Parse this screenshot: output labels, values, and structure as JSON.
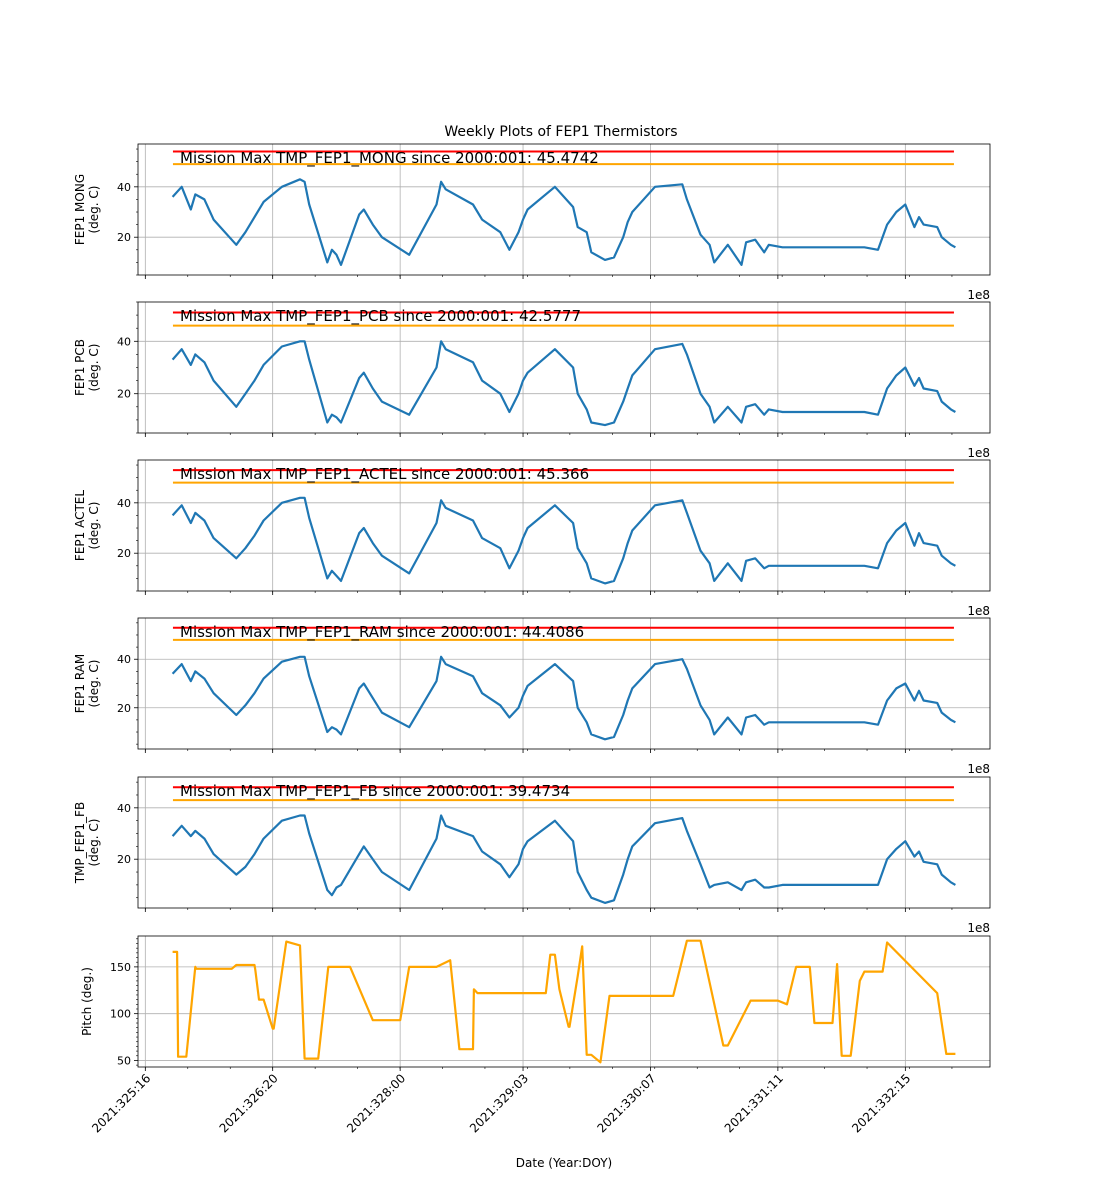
{
  "figure": {
    "title": "Weekly Plots of FEP1 Thermistors",
    "xlabel": "Date (Year:DOY)",
    "offset_label": "1e8"
  },
  "colors": {
    "series": "#1f77b4",
    "pitch": "#ffa500",
    "red_limit": "#ff0000",
    "yellow_limit": "#ffa500",
    "grid": "#b0b0b0",
    "frame": "#000000"
  },
  "chart_data": [
    {
      "type": "line",
      "ylabel": [
        "FEP1 MONG",
        "(deg. C)"
      ],
      "annotation": "Mission Max TMP_FEP1_MONG since 2000:001: 45.4742",
      "ylim": [
        5,
        57
      ],
      "yticks": [
        20,
        40
      ],
      "limits": [
        {
          "name": "red",
          "value": 54
        },
        {
          "name": "yellow",
          "value": 49
        }
      ],
      "series": [
        {
          "x": [
            325.917,
            326.0,
            326.083,
            326.125,
            326.208,
            326.292,
            326.5,
            326.583,
            326.667,
            326.75,
            326.917,
            327.083,
            327.125,
            327.167,
            327.333,
            327.375,
            327.417,
            327.458,
            327.625,
            327.667,
            327.75,
            327.833,
            328.083,
            328.333,
            328.375,
            328.417,
            328.667,
            328.75,
            328.917,
            329.0,
            329.083,
            329.125,
            329.167,
            329.417,
            329.583,
            329.625,
            329.708,
            329.75,
            329.875,
            329.958,
            330.042,
            330.083,
            330.125,
            330.333,
            330.583,
            330.625,
            330.75,
            330.833,
            330.875,
            331.0,
            331.125,
            331.167,
            331.25,
            331.333,
            331.375,
            331.5,
            331.75,
            332.0,
            332.25,
            332.375,
            332.458,
            332.542,
            332.625,
            332.708,
            332.75,
            332.792,
            332.917,
            332.958,
            333.042,
            333.083
          ],
          "y": [
            36,
            40,
            31,
            37,
            35,
            27,
            17,
            22,
            28,
            34,
            40,
            43,
            42,
            33,
            10,
            15,
            13,
            9,
            29,
            31,
            25,
            20,
            13,
            33,
            42,
            39,
            33,
            27,
            22,
            15,
            22,
            27,
            31,
            40,
            32,
            24,
            22,
            14,
            11,
            12,
            20,
            26,
            30,
            40,
            41,
            35,
            21,
            17,
            10,
            17,
            9,
            18,
            19,
            14,
            17,
            16,
            16,
            16,
            16,
            15,
            25,
            30,
            33,
            24,
            28,
            25,
            24,
            20,
            17,
            16
          ],
          "name": ""
        }
      ]
    },
    {
      "type": "line",
      "ylabel": [
        "FEP1 PCB",
        "(deg. C)"
      ],
      "annotation": "Mission Max TMP_FEP1_PCB since 2000:001: 42.5777",
      "ylim": [
        5,
        55
      ],
      "yticks": [
        20,
        40
      ],
      "limits": [
        {
          "name": "red",
          "value": 51
        },
        {
          "name": "yellow",
          "value": 46
        }
      ],
      "series": [
        {
          "x": [
            325.917,
            326.0,
            326.083,
            326.125,
            326.208,
            326.292,
            326.5,
            326.583,
            326.667,
            326.75,
            326.917,
            327.083,
            327.125,
            327.167,
            327.333,
            327.375,
            327.417,
            327.458,
            327.625,
            327.667,
            327.75,
            327.833,
            328.083,
            328.333,
            328.375,
            328.417,
            328.667,
            328.75,
            328.917,
            329.0,
            329.083,
            329.125,
            329.167,
            329.417,
            329.583,
            329.625,
            329.708,
            329.75,
            329.875,
            329.958,
            330.042,
            330.083,
            330.125,
            330.333,
            330.583,
            330.625,
            330.75,
            330.833,
            330.875,
            331.0,
            331.125,
            331.167,
            331.25,
            331.333,
            331.375,
            331.5,
            331.75,
            332.0,
            332.25,
            332.375,
            332.458,
            332.542,
            332.625,
            332.708,
            332.75,
            332.792,
            332.917,
            332.958,
            333.042,
            333.083
          ],
          "y": [
            33,
            37,
            31,
            35,
            32,
            25,
            15,
            20,
            25,
            31,
            38,
            40,
            40,
            33,
            9,
            12,
            11,
            9,
            26,
            28,
            22,
            17,
            12,
            30,
            40,
            37,
            32,
            25,
            20,
            13,
            20,
            25,
            28,
            37,
            30,
            20,
            14,
            9,
            8,
            9,
            17,
            22,
            27,
            37,
            39,
            35,
            20,
            15,
            9,
            15,
            9,
            15,
            16,
            12,
            14,
            13,
            13,
            13,
            13,
            12,
            22,
            27,
            30,
            23,
            26,
            22,
            21,
            17,
            14,
            13
          ],
          "name": ""
        }
      ]
    },
    {
      "type": "line",
      "ylabel": [
        "FEP1 ACTEL",
        "(deg. C)"
      ],
      "annotation": "Mission Max TMP_FEP1_ACTEL since 2000:001: 45.366",
      "ylim": [
        5,
        57
      ],
      "yticks": [
        20,
        40
      ],
      "limits": [
        {
          "name": "red",
          "value": 53
        },
        {
          "name": "yellow",
          "value": 48
        }
      ],
      "series": [
        {
          "x": [
            325.917,
            326.0,
            326.083,
            326.125,
            326.208,
            326.292,
            326.5,
            326.583,
            326.667,
            326.75,
            326.917,
            327.083,
            327.125,
            327.167,
            327.333,
            327.375,
            327.417,
            327.458,
            327.625,
            327.667,
            327.75,
            327.833,
            328.083,
            328.333,
            328.375,
            328.417,
            328.667,
            328.75,
            328.917,
            329.0,
            329.083,
            329.125,
            329.167,
            329.417,
            329.583,
            329.625,
            329.708,
            329.75,
            329.875,
            329.958,
            330.042,
            330.083,
            330.125,
            330.333,
            330.583,
            330.625,
            330.75,
            330.833,
            330.875,
            331.0,
            331.125,
            331.167,
            331.25,
            331.333,
            331.375,
            331.5,
            331.75,
            332.0,
            332.25,
            332.375,
            332.458,
            332.542,
            332.625,
            332.708,
            332.75,
            332.792,
            332.917,
            332.958,
            333.042,
            333.083
          ],
          "y": [
            35,
            39,
            32,
            36,
            33,
            26,
            18,
            22,
            27,
            33,
            40,
            42,
            42,
            34,
            10,
            13,
            11,
            9,
            28,
            30,
            24,
            19,
            12,
            32,
            41,
            38,
            33,
            26,
            22,
            14,
            21,
            26,
            30,
            39,
            32,
            22,
            16,
            10,
            8,
            9,
            18,
            24,
            29,
            39,
            41,
            36,
            21,
            16,
            9,
            16,
            9,
            17,
            18,
            14,
            15,
            15,
            15,
            15,
            15,
            14,
            24,
            29,
            32,
            23,
            28,
            24,
            23,
            19,
            16,
            15
          ],
          "name": ""
        }
      ]
    },
    {
      "type": "line",
      "ylabel": [
        "FEP1 RAM",
        "(deg. C)"
      ],
      "annotation": "Mission Max TMP_FEP1_RAM since 2000:001: 44.4086",
      "ylim": [
        3,
        57
      ],
      "yticks": [
        20,
        40
      ],
      "limits": [
        {
          "name": "red",
          "value": 53
        },
        {
          "name": "yellow",
          "value": 48
        }
      ],
      "series": [
        {
          "x": [
            325.917,
            326.0,
            326.083,
            326.125,
            326.208,
            326.292,
            326.5,
            326.583,
            326.667,
            326.75,
            326.917,
            327.083,
            327.125,
            327.167,
            327.333,
            327.375,
            327.417,
            327.458,
            327.625,
            327.667,
            327.75,
            327.833,
            328.083,
            328.333,
            328.375,
            328.417,
            328.667,
            328.75,
            328.917,
            329.0,
            329.083,
            329.125,
            329.167,
            329.417,
            329.583,
            329.625,
            329.708,
            329.75,
            329.875,
            329.958,
            330.042,
            330.083,
            330.125,
            330.333,
            330.583,
            330.625,
            330.75,
            330.833,
            330.875,
            331.0,
            331.125,
            331.167,
            331.25,
            331.333,
            331.375,
            331.5,
            331.75,
            332.0,
            332.25,
            332.375,
            332.458,
            332.542,
            332.625,
            332.708,
            332.75,
            332.792,
            332.917,
            332.958,
            333.042,
            333.083
          ],
          "y": [
            34,
            38,
            31,
            35,
            32,
            26,
            17,
            21,
            26,
            32,
            39,
            41,
            41,
            33,
            10,
            12,
            11,
            9,
            28,
            30,
            24,
            18,
            12,
            31,
            41,
            38,
            33,
            26,
            21,
            16,
            20,
            25,
            29,
            38,
            31,
            20,
            14,
            9,
            7,
            8,
            17,
            23,
            28,
            38,
            40,
            36,
            21,
            15,
            9,
            16,
            9,
            16,
            17,
            13,
            14,
            14,
            14,
            14,
            14,
            13,
            23,
            28,
            30,
            23,
            27,
            23,
            22,
            18,
            15,
            14
          ],
          "name": ""
        }
      ]
    },
    {
      "type": "line",
      "ylabel": [
        "TMP_FEP1_FB",
        "(deg. C)"
      ],
      "annotation": "Mission Max TMP_FEP1_FB since 2000:001: 39.4734",
      "ylim": [
        1,
        52
      ],
      "yticks": [
        20,
        40
      ],
      "limits": [
        {
          "name": "red",
          "value": 48
        },
        {
          "name": "yellow",
          "value": 43
        }
      ],
      "series": [
        {
          "x": [
            325.917,
            326.0,
            326.083,
            326.125,
            326.208,
            326.292,
            326.5,
            326.583,
            326.667,
            326.75,
            326.917,
            327.083,
            327.125,
            327.167,
            327.333,
            327.375,
            327.417,
            327.458,
            327.625,
            327.667,
            327.75,
            327.833,
            328.083,
            328.333,
            328.375,
            328.417,
            328.667,
            328.75,
            328.917,
            329.0,
            329.083,
            329.125,
            329.167,
            329.417,
            329.583,
            329.625,
            329.708,
            329.75,
            329.875,
            329.958,
            330.042,
            330.083,
            330.125,
            330.333,
            330.583,
            330.625,
            330.75,
            330.833,
            330.875,
            331.0,
            331.125,
            331.167,
            331.25,
            331.333,
            331.375,
            331.5,
            331.75,
            332.0,
            332.25,
            332.375,
            332.458,
            332.542,
            332.625,
            332.708,
            332.75,
            332.792,
            332.917,
            332.958,
            333.042,
            333.083
          ],
          "y": [
            29,
            33,
            29,
            31,
            28,
            22,
            14,
            17,
            22,
            28,
            35,
            37,
            37,
            30,
            8,
            6,
            9,
            10,
            22,
            25,
            20,
            15,
            8,
            28,
            37,
            33,
            29,
            23,
            18,
            13,
            18,
            24,
            27,
            35,
            27,
            15,
            8,
            5,
            3,
            4,
            14,
            20,
            25,
            34,
            36,
            31,
            18,
            9,
            10,
            11,
            8,
            11,
            12,
            9,
            9,
            10,
            10,
            10,
            10,
            10,
            20,
            24,
            27,
            21,
            23,
            19,
            18,
            14,
            11,
            10
          ],
          "name": ""
        }
      ]
    },
    {
      "type": "line",
      "ylabel": [
        "Pitch (deg.)"
      ],
      "annotation": "",
      "ylim": [
        43,
        183
      ],
      "yticks": [
        50,
        100,
        150
      ],
      "limits": [],
      "series": [
        {
          "x": [
            325.917,
            325.958,
            325.967,
            326.0,
            326.042,
            326.125,
            326.133,
            326.167,
            326.458,
            326.5,
            326.667,
            326.675,
            326.708,
            326.75,
            326.833,
            326.842,
            326.958,
            327.083,
            327.125,
            327.133,
            327.167,
            327.25,
            327.342,
            327.35,
            327.542,
            327.75,
            327.833,
            327.917,
            327.95,
            328.0,
            328.083,
            328.333,
            328.458,
            328.542,
            328.625,
            328.667,
            328.675,
            328.708,
            329.0,
            329.083,
            329.167,
            329.333,
            329.375,
            329.417,
            329.458,
            329.542,
            329.55,
            329.625,
            329.667,
            329.708,
            329.75,
            329.833,
            329.917,
            330.042,
            330.125,
            330.417,
            330.5,
            330.625,
            330.75,
            330.958,
            331.0,
            331.208,
            331.25,
            331.458,
            331.542,
            331.625,
            331.708,
            331.75,
            331.792,
            331.833,
            331.875,
            331.958,
            332.0,
            332.042,
            332.125,
            332.208,
            332.25,
            332.417,
            332.458,
            332.917,
            333.0,
            333.083
          ],
          "y": [
            166,
            166,
            54,
            54,
            54,
            150,
            148,
            148,
            148,
            152,
            152,
            146,
            115,
            115,
            84,
            84,
            177,
            173,
            52,
            52,
            52,
            52,
            150,
            150,
            150,
            93,
            93,
            93,
            93,
            93,
            150,
            150,
            157,
            62,
            62,
            62,
            126,
            122,
            122,
            122,
            122,
            122,
            163,
            163,
            126,
            86,
            86,
            140,
            172,
            56,
            56,
            48,
            119,
            119,
            119,
            119,
            119,
            178,
            178,
            66,
            66,
            114,
            114,
            114,
            110,
            150,
            150,
            150,
            90,
            90,
            90,
            90,
            153,
            55,
            55,
            135,
            145,
            145,
            176,
            122,
            57,
            57
          ],
          "name": ""
        }
      ]
    }
  ],
  "xaxis": {
    "range": [
      325.6,
      333.4
    ],
    "major_ticks": [
      325.667,
      326.833,
      328.0,
      329.125,
      330.292,
      331.458,
      332.625
    ],
    "tick_labels": [
      "2021:325:16",
      "2021:326:20",
      "2021:328:00",
      "2021:329:03",
      "2021:330:07",
      "2021:331:11",
      "2021:332:15"
    ]
  }
}
